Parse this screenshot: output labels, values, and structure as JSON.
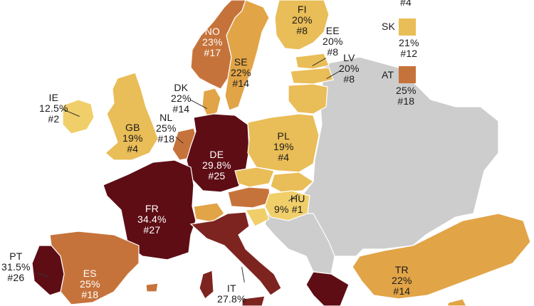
{
  "colors": {
    "c9": "#f0cf6a",
    "c19": "#e9bd57",
    "c22": "#e1a447",
    "c25": "#c6733b",
    "c28": "#7d2420",
    "c34": "#5e0d15",
    "nodata": "#cdcdcd",
    "sea": "#ffffff"
  },
  "countries": [
    {
      "code": "IE",
      "rate": "12.5%",
      "rank": "#2",
      "fill": "#f0cf6a",
      "value": 12.5
    },
    {
      "code": "GB",
      "rate": "19%",
      "rank": "#4",
      "fill": "#e9bd57",
      "value": 19
    },
    {
      "code": "NO",
      "rate": "23%",
      "rank": "#17",
      "fill": "#c6733b",
      "value": 23
    },
    {
      "code": "SE",
      "rate": "22%",
      "rank": "#14",
      "fill": "#e1a447",
      "value": 22
    },
    {
      "code": "FI",
      "rate": "20%",
      "rank": "#8",
      "fill": "#e9bd57",
      "value": 20
    },
    {
      "code": "EE",
      "rate": "20%",
      "rank": "#8",
      "fill": "#e9bd57",
      "value": 20
    },
    {
      "code": "LV",
      "rate": "20%",
      "rank": "#8",
      "fill": "#e9bd57",
      "value": 20
    },
    {
      "code": "DK",
      "rate": "22%",
      "rank": "#14",
      "fill": "#e1a447",
      "value": 22
    },
    {
      "code": "NL",
      "rate": "25%",
      "rank": "#18",
      "fill": "#c6733b",
      "value": 25
    },
    {
      "code": "DE",
      "rate": "29.8%",
      "rank": "#25",
      "fill": "#5e0d15",
      "value": 29.8
    },
    {
      "code": "PL",
      "rate": "19%",
      "rank": "#4",
      "fill": "#e9bd57",
      "value": 19
    },
    {
      "code": "FR",
      "rate": "34.4%",
      "rank": "#27",
      "fill": "#5e0d15",
      "value": 34.4
    },
    {
      "code": "HU",
      "rate": "9%",
      "rank": "#1",
      "fill": "#f0cf6a",
      "value": 9
    },
    {
      "code": "ES",
      "rate": "25%",
      "rank": "#18",
      "fill": "#c6733b",
      "value": 25
    },
    {
      "code": "PT",
      "rate": "31.5%",
      "rank": "#26",
      "fill": "#5e0d15",
      "value": 31.5
    },
    {
      "code": "IT",
      "rate": "27.8%",
      "rank": "",
      "fill": "#7d2420",
      "value": 27.8
    },
    {
      "code": "TR",
      "rate": "22%",
      "rank": "#14",
      "fill": "#e1a447",
      "value": 22
    }
  ],
  "legend": [
    {
      "code": "SK",
      "rate": "21%",
      "rank": "#12",
      "fill": "#e9bd57"
    },
    {
      "code": "AT",
      "rate": "25%",
      "rank": "#18",
      "fill": "#c6733b"
    }
  ],
  "top_right_fragment": "#4"
}
